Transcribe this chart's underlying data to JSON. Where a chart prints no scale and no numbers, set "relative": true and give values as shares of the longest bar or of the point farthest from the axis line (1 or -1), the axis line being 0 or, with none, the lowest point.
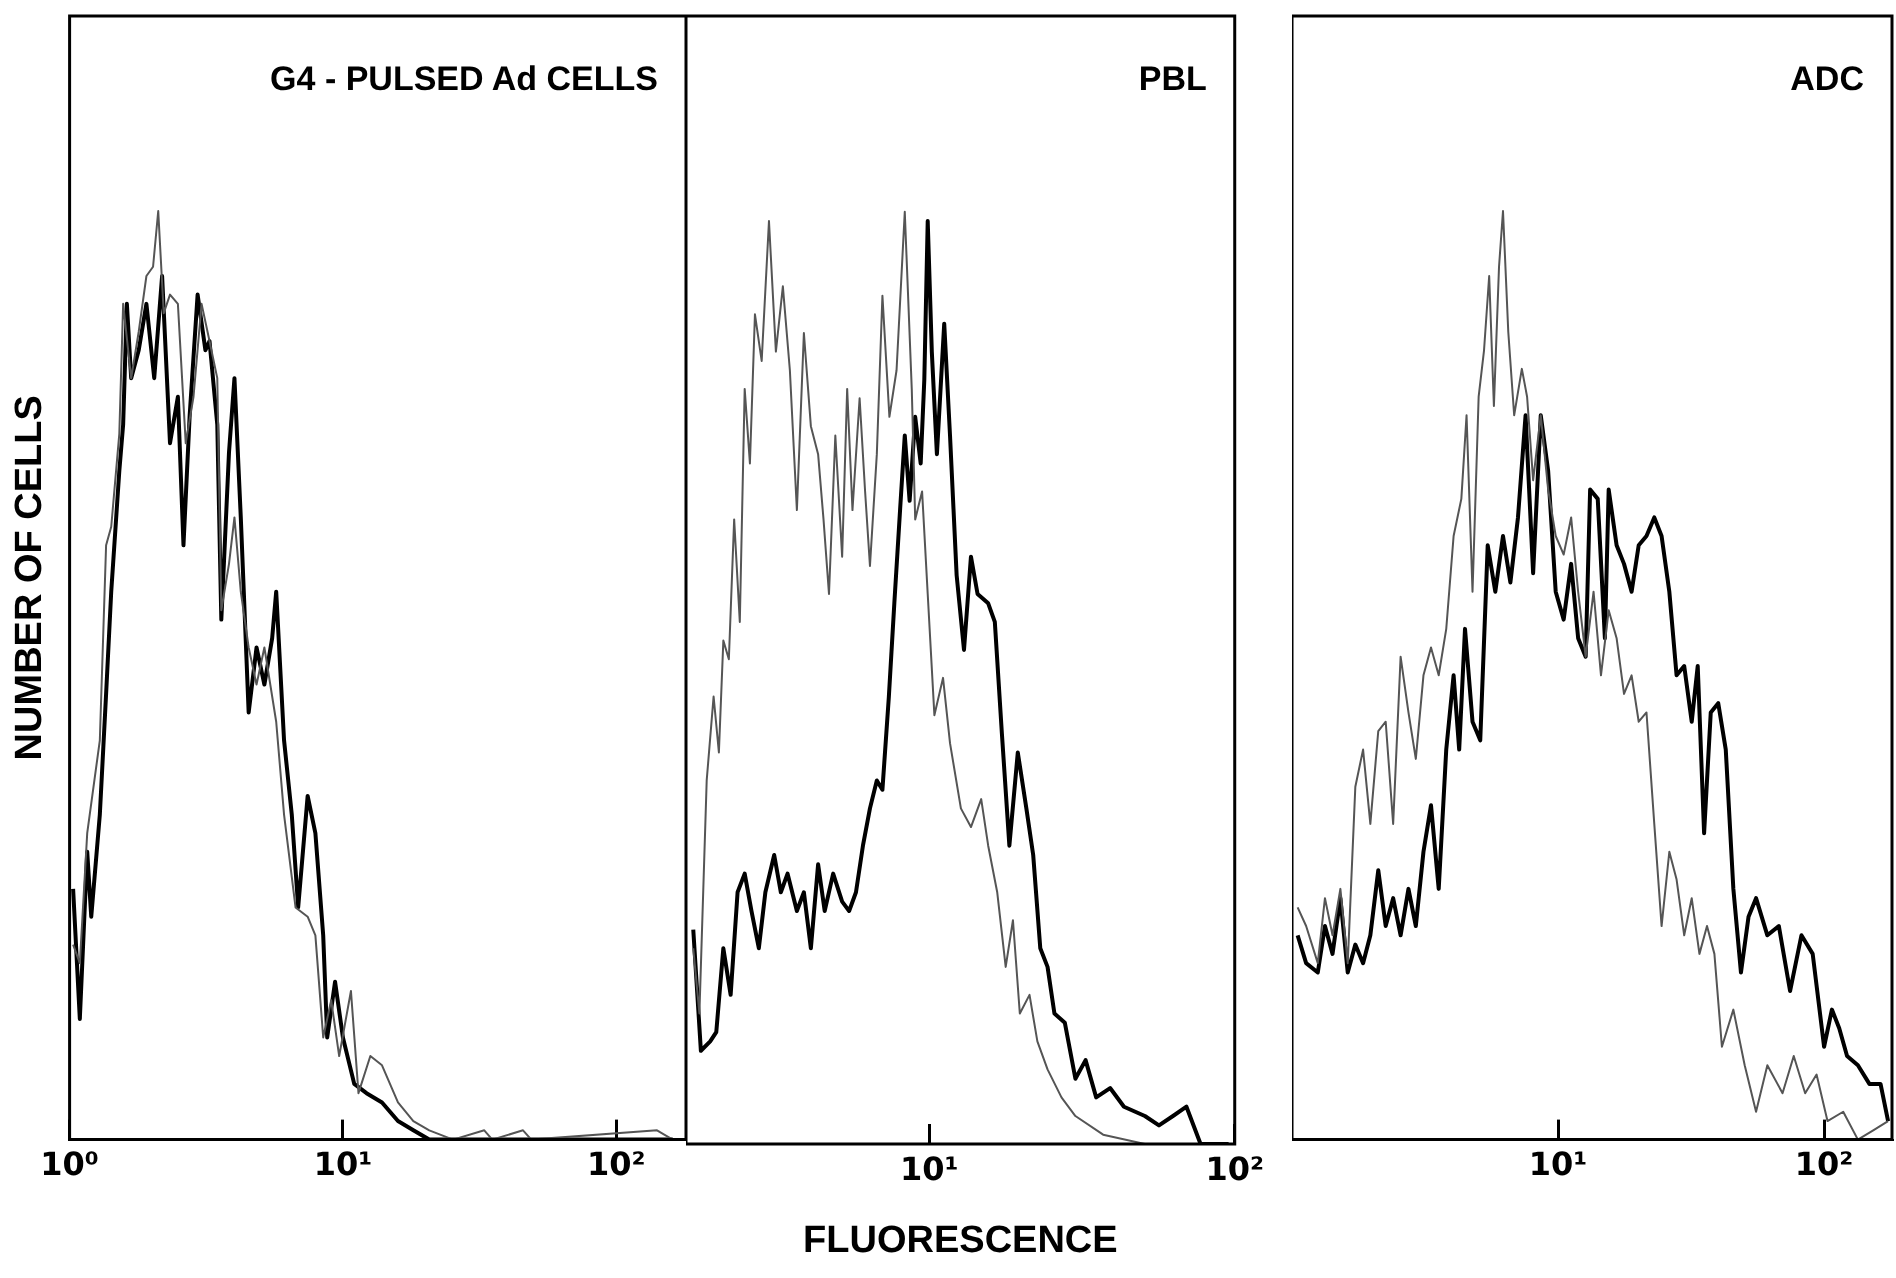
{
  "chart_data": [
    {
      "type": "line",
      "title": "G4 - PULSED Ad CELLS",
      "ylabel": "NUMBER OF CELLS",
      "relative": true,
      "log": "x",
      "xlim": [
        1,
        180
      ],
      "xticks": [
        {
          "value": 1,
          "label": "10⁰"
        },
        {
          "value": 10,
          "label": "10¹"
        },
        {
          "value": 100,
          "label": "10²"
        }
      ],
      "grid": false,
      "legend": false,
      "marker": "none",
      "line_style": "solid",
      "series": [
        {
          "color": "#555555",
          "x": [
            1.03,
            1.09,
            1.16,
            1.29,
            1.36,
            1.42,
            1.52,
            1.57,
            1.68,
            1.79,
            1.91,
            2.02,
            2.11,
            2.21,
            2.33,
            2.49,
            2.66,
            2.84,
            3.04,
            3.25,
            3.47,
            3.59,
            3.83,
            4.01,
            4.23,
            4.52,
            4.83,
            5.16,
            5.7,
            6.09,
            6.71,
            7.43,
            7.93,
            8.47,
            9.06,
            9.69,
            10.7,
            11.4,
            12.6,
            13.9,
            15.9,
            18.1,
            20.7,
            25.3,
            32.9,
            35.2,
            45.6,
            48.9,
            141,
            161
          ],
          "values": [
            0.21,
            0.19,
            0.33,
            0.43,
            0.64,
            0.66,
            0.76,
            0.9,
            0.82,
            0.87,
            0.93,
            0.94,
            1.0,
            0.89,
            0.91,
            0.9,
            0.75,
            0.8,
            0.9,
            0.86,
            0.82,
            0.57,
            0.62,
            0.67,
            0.59,
            0.53,
            0.49,
            0.53,
            0.45,
            0.35,
            0.25,
            0.24,
            0.22,
            0.11,
            0.15,
            0.09,
            0.16,
            0.05,
            0.09,
            0.08,
            0.04,
            0.02,
            0.01,
            0,
            0.01,
            0,
            0.01,
            0,
            0.01,
            0
          ]
        },
        {
          "color": "#000000",
          "x": [
            1.03,
            1.09,
            1.16,
            1.2,
            1.29,
            1.36,
            1.42,
            1.52,
            1.57,
            1.62,
            1.68,
            1.79,
            1.91,
            2.04,
            2.18,
            2.33,
            2.49,
            2.61,
            2.75,
            2.94,
            3.14,
            3.25,
            3.47,
            3.59,
            3.83,
            4.01,
            4.23,
            4.52,
            4.83,
            5.16,
            5.51,
            5.7,
            6.09,
            6.5,
            6.86,
            7.43,
            7.93,
            8.47,
            8.76,
            9.36,
            10,
            11,
            12.2,
            13.9,
            15.9,
            18.1,
            20.7,
            35.2,
            161
          ],
          "values": [
            0.27,
            0.13,
            0.31,
            0.24,
            0.35,
            0.48,
            0.59,
            0.72,
            0.77,
            0.9,
            0.82,
            0.85,
            0.9,
            0.82,
            0.93,
            0.75,
            0.8,
            0.64,
            0.78,
            0.91,
            0.85,
            0.86,
            0.77,
            0.56,
            0.74,
            0.82,
            0.67,
            0.46,
            0.53,
            0.49,
            0.54,
            0.59,
            0.43,
            0.35,
            0.25,
            0.37,
            0.33,
            0.22,
            0.11,
            0.17,
            0.11,
            0.06,
            0.05,
            0.04,
            0.02,
            0.01,
            0,
            0,
            0
          ]
        }
      ]
    },
    {
      "type": "line",
      "title": "PBL",
      "xlabel": "FLUORESCENCE",
      "relative": true,
      "log": "x",
      "xlim": [
        1.6,
        100
      ],
      "xticks": [
        {
          "value": 10,
          "label": "10¹"
        },
        {
          "value": 100,
          "label": "10²"
        }
      ],
      "grid": false,
      "legend": false,
      "marker": "none",
      "line_style": "solid",
      "series": [
        {
          "color": "#555555",
          "x": [
            1.69,
            1.77,
            1.87,
            1.97,
            2.05,
            2.12,
            2.21,
            2.3,
            2.4,
            2.49,
            2.59,
            2.69,
            2.83,
            2.99,
            3.15,
            3.32,
            3.5,
            3.69,
            3.89,
            4.1,
            4.33,
            4.51,
            4.7,
            4.93,
            5.19,
            5.39,
            5.61,
            5.92,
            6.17,
            6.4,
            6.74,
            7.03,
            7.41,
            7.82,
            8.32,
            8.77,
            9,
            9.48,
            9.89,
            10.4,
            11.1,
            11.7,
            12.7,
            13.7,
            14.8,
            15.6,
            16.7,
            17.8,
            18.8,
            19.8,
            21.3,
            22.6,
            24.4,
            27.1,
            30.1,
            37.1,
            50.8,
            69.5,
            95.5
          ],
          "values": [
            0.21,
            0.14,
            0.39,
            0.48,
            0.42,
            0.54,
            0.52,
            0.67,
            0.56,
            0.81,
            0.73,
            0.89,
            0.84,
            0.99,
            0.85,
            0.92,
            0.83,
            0.68,
            0.87,
            0.77,
            0.74,
            0.67,
            0.59,
            0.76,
            0.63,
            0.81,
            0.68,
            0.8,
            0.7,
            0.62,
            0.74,
            0.91,
            0.78,
            0.83,
            1.0,
            0.81,
            0.67,
            0.7,
            0.59,
            0.46,
            0.5,
            0.43,
            0.36,
            0.34,
            0.37,
            0.32,
            0.27,
            0.19,
            0.24,
            0.14,
            0.16,
            0.11,
            0.08,
            0.05,
            0.03,
            0.01,
            0,
            0,
            0
          ]
        },
        {
          "color": "#000000",
          "x": [
            1.69,
            1.79,
            1.92,
            2.01,
            2.12,
            2.24,
            2.36,
            2.49,
            2.62,
            2.77,
            2.91,
            3.11,
            3.27,
            3.44,
            3.69,
            3.89,
            4.1,
            4.33,
            4.55,
            4.85,
            5.19,
            5.47,
            5.76,
            6.07,
            6.4,
            6.74,
            7.03,
            7.38,
            7.69,
            8.03,
            8.32,
            8.63,
            9,
            9.38,
            9.64,
            9.89,
            10.2,
            10.6,
            11.2,
            11.7,
            12.3,
            13,
            13.7,
            14.4,
            15.6,
            16.4,
            17.3,
            18.3,
            19.5,
            20.8,
            21.9,
            23.1,
            24.4,
            25.7,
            27.8,
            30.1,
            32.5,
            35.2,
            39.1,
            43.4,
            50.8,
            56.5,
            62.8,
            69.5,
            77.3,
            95.5
          ],
          "values": [
            0.23,
            0.1,
            0.11,
            0.12,
            0.21,
            0.16,
            0.27,
            0.29,
            0.25,
            0.21,
            0.27,
            0.31,
            0.27,
            0.29,
            0.25,
            0.27,
            0.21,
            0.3,
            0.25,
            0.29,
            0.26,
            0.25,
            0.27,
            0.32,
            0.36,
            0.39,
            0.38,
            0.48,
            0.58,
            0.68,
            0.76,
            0.69,
            0.78,
            0.73,
            0.82,
            0.99,
            0.85,
            0.74,
            0.88,
            0.76,
            0.61,
            0.53,
            0.63,
            0.59,
            0.58,
            0.56,
            0.44,
            0.32,
            0.42,
            0.36,
            0.31,
            0.21,
            0.19,
            0.14,
            0.13,
            0.07,
            0.09,
            0.05,
            0.06,
            0.04,
            0.03,
            0.02,
            0.03,
            0.04,
            0,
            0
          ]
        }
      ]
    },
    {
      "type": "line",
      "title": "ADC",
      "relative": true,
      "log": "x",
      "xlim": [
        1,
        180
      ],
      "xticks": [
        {
          "value": 10,
          "label": "10¹"
        },
        {
          "value": 100,
          "label": "10²"
        }
      ],
      "grid": false,
      "legend": false,
      "marker": "none",
      "line_style": "solid",
      "series": [
        {
          "color": "#555555",
          "x": [
            1.05,
            1.13,
            1.25,
            1.33,
            1.42,
            1.52,
            1.62,
            1.73,
            1.85,
            1.97,
            2.11,
            2.25,
            2.4,
            2.56,
            2.74,
            2.92,
            3.12,
            3.33,
            3.56,
            3.8,
            4.05,
            4.33,
            4.53,
            4.77,
            5.03,
            5.27,
            5.51,
            5.74,
            6,
            6.21,
            6.5,
            6.84,
            7.31,
            7.65,
            8.06,
            8.61,
            9.18,
            9.8,
            10.5,
            11.2,
            11.9,
            12.7,
            13.6,
            14.5,
            15.5,
            16.6,
            17.7,
            18.9,
            20.1,
            21.5,
            23,
            24.5,
            26.2,
            27.9,
            29.8,
            31.8,
            34,
            36.3,
            38.7,
            41.3,
            45.6,
            50.3,
            55.5,
            61.2,
            69.8,
            76.9,
            84.9,
            93.7,
            103,
            118,
            134,
            153,
            174
          ],
          "values": [
            0.25,
            0.23,
            0.19,
            0.26,
            0.22,
            0.27,
            0.19,
            0.38,
            0.42,
            0.34,
            0.44,
            0.45,
            0.34,
            0.52,
            0.46,
            0.41,
            0.5,
            0.53,
            0.5,
            0.55,
            0.65,
            0.69,
            0.78,
            0.59,
            0.8,
            0.85,
            0.93,
            0.79,
            0.94,
            1.0,
            0.87,
            0.78,
            0.83,
            0.8,
            0.71,
            0.78,
            0.7,
            0.65,
            0.63,
            0.67,
            0.59,
            0.52,
            0.59,
            0.5,
            0.57,
            0.54,
            0.48,
            0.5,
            0.45,
            0.46,
            0.34,
            0.23,
            0.31,
            0.28,
            0.22,
            0.26,
            0.2,
            0.23,
            0.2,
            0.1,
            0.14,
            0.08,
            0.03,
            0.08,
            0.05,
            0.09,
            0.05,
            0.07,
            0.02,
            0.03,
            0,
            0.01,
            0.02
          ]
        },
        {
          "color": "#000000",
          "x": [
            1.05,
            1.13,
            1.25,
            1.33,
            1.42,
            1.52,
            1.62,
            1.73,
            1.85,
            1.97,
            2.11,
            2.25,
            2.4,
            2.56,
            2.74,
            2.92,
            3.12,
            3.33,
            3.56,
            3.8,
            4.05,
            4.25,
            4.47,
            4.77,
            5.1,
            5.44,
            5.81,
            6.21,
            6.62,
            7.07,
            7.55,
            8.06,
            8.61,
            9.18,
            9.8,
            10.5,
            11.2,
            11.9,
            12.7,
            13.2,
            14.1,
            15,
            15.5,
            16.6,
            17.7,
            18.9,
            20.1,
            21.5,
            23,
            24.5,
            26.2,
            27.9,
            29.8,
            31.8,
            33.5,
            35.4,
            37.5,
            40,
            42.7,
            45.6,
            48.7,
            52,
            55.5,
            61.2,
            67.6,
            74.5,
            82.2,
            90.6,
            100,
            107,
            114,
            122,
            134,
            148,
            163,
            174
          ],
          "values": [
            0.22,
            0.19,
            0.18,
            0.23,
            0.2,
            0.26,
            0.18,
            0.21,
            0.19,
            0.22,
            0.29,
            0.23,
            0.26,
            0.22,
            0.27,
            0.23,
            0.31,
            0.36,
            0.27,
            0.42,
            0.5,
            0.42,
            0.55,
            0.45,
            0.43,
            0.64,
            0.59,
            0.65,
            0.6,
            0.67,
            0.78,
            0.61,
            0.78,
            0.72,
            0.59,
            0.56,
            0.62,
            0.54,
            0.52,
            0.7,
            0.69,
            0.54,
            0.7,
            0.64,
            0.62,
            0.59,
            0.64,
            0.65,
            0.67,
            0.65,
            0.59,
            0.5,
            0.51,
            0.45,
            0.51,
            0.33,
            0.46,
            0.47,
            0.42,
            0.27,
            0.18,
            0.24,
            0.26,
            0.22,
            0.23,
            0.16,
            0.22,
            0.2,
            0.1,
            0.14,
            0.12,
            0.09,
            0.08,
            0.06,
            0.06,
            0.02
          ]
        }
      ]
    }
  ]
}
